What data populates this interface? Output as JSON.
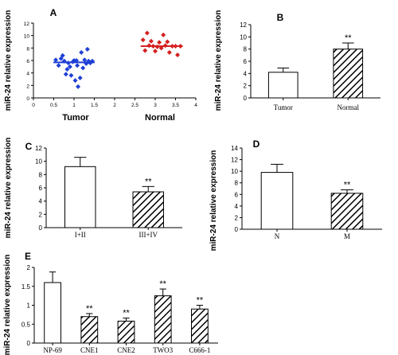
{
  "chart_data": [
    {
      "panel": "A",
      "type": "scatter",
      "ylabel": "miR-24 relative expression",
      "xlim": [
        0,
        4
      ],
      "ylim": [
        0,
        12
      ],
      "x_ticks": [
        "0",
        "0.5",
        "1",
        "1.5",
        "2",
        "2.5",
        "3",
        "3.5",
        "4"
      ],
      "y_ticks": [
        "0",
        "2",
        "4",
        "6",
        "8",
        "10",
        "12"
      ],
      "group_labels": [
        "Tumor",
        "Normal"
      ],
      "series": [
        {
          "color": "#1f3fd6",
          "mean": 5.7,
          "points": [
            [
              0.55,
              6.1
            ],
            [
              0.62,
              5.2
            ],
            [
              0.68,
              6.3
            ],
            [
              0.72,
              6.8
            ],
            [
              0.76,
              5.9
            ],
            [
              0.8,
              3.8
            ],
            [
              0.83,
              4.6
            ],
            [
              0.86,
              5.6
            ],
            [
              0.9,
              5.0
            ],
            [
              0.93,
              3.6
            ],
            [
              0.97,
              5.8
            ],
            [
              1.0,
              6.0
            ],
            [
              1.03,
              2.8
            ],
            [
              1.06,
              6.0
            ],
            [
              1.08,
              5.2
            ],
            [
              1.1,
              1.8
            ],
            [
              1.15,
              3.2
            ],
            [
              1.18,
              7.3
            ],
            [
              1.22,
              4.8
            ],
            [
              1.26,
              6.1
            ],
            [
              1.3,
              5.5
            ],
            [
              1.33,
              7.8
            ],
            [
              1.36,
              5.9
            ],
            [
              1.4,
              5.6
            ],
            [
              1.45,
              5.9
            ]
          ]
        },
        {
          "color": "#d42020",
          "mean": 8.3,
          "points": [
            [
              2.7,
              9.3
            ],
            [
              2.75,
              7.6
            ],
            [
              2.8,
              10.4
            ],
            [
              2.85,
              8.4
            ],
            [
              2.9,
              9.1
            ],
            [
              2.95,
              8.3
            ],
            [
              3.0,
              7.5
            ],
            [
              3.05,
              8.2
            ],
            [
              3.1,
              8.9
            ],
            [
              3.15,
              8.0
            ],
            [
              3.2,
              10.1
            ],
            [
              3.25,
              8.4
            ],
            [
              3.3,
              9.0
            ],
            [
              3.35,
              7.3
            ],
            [
              3.42,
              8.3
            ],
            [
              3.5,
              8.3
            ],
            [
              3.55,
              6.9
            ],
            [
              3.62,
              8.3
            ]
          ]
        }
      ]
    },
    {
      "panel": "B",
      "type": "bar",
      "ylabel": "miR-24 relative expression",
      "ylim": [
        0,
        12
      ],
      "y_ticks": [
        "0",
        "2",
        "4",
        "6",
        "8",
        "10",
        "12"
      ],
      "categories": [
        "Tumor",
        "Normal"
      ],
      "values": [
        4.2,
        8.0
      ],
      "errors": [
        0.7,
        1.0
      ],
      "hatched": [
        false,
        true
      ],
      "annotations": [
        "",
        "**"
      ]
    },
    {
      "panel": "C",
      "type": "bar",
      "ylabel": "miR-24 relative expression",
      "ylim": [
        0,
        12
      ],
      "y_ticks": [
        "0",
        "2",
        "4",
        "6",
        "8",
        "10",
        "12"
      ],
      "categories": [
        "I+II",
        "III+IV"
      ],
      "values": [
        9.2,
        5.4
      ],
      "errors": [
        1.4,
        0.8
      ],
      "hatched": [
        false,
        true
      ],
      "annotations": [
        "",
        "**"
      ]
    },
    {
      "panel": "D",
      "type": "bar",
      "ylabel": "miR-24 relative expression",
      "ylim": [
        0,
        14
      ],
      "y_ticks": [
        "0",
        "2",
        "4",
        "6",
        "8",
        "10",
        "12",
        "14"
      ],
      "categories": [
        "N",
        "M"
      ],
      "values": [
        9.8,
        6.2
      ],
      "errors": [
        1.4,
        0.6
      ],
      "hatched": [
        false,
        true
      ],
      "annotations": [
        "",
        "**"
      ]
    },
    {
      "panel": "E",
      "type": "bar",
      "ylabel": "miR-24 relative expression",
      "ylim": [
        0,
        2.0
      ],
      "y_ticks": [
        "0",
        "0.5",
        "1",
        "1.5",
        "2"
      ],
      "categories": [
        "NP-69",
        "CNE1",
        "CNE2",
        "TWO3",
        "C666-1"
      ],
      "values": [
        1.6,
        0.7,
        0.58,
        1.25,
        0.9
      ],
      "errors": [
        0.28,
        0.08,
        0.08,
        0.18,
        0.1
      ],
      "hatched": [
        false,
        true,
        true,
        true,
        true
      ],
      "annotations": [
        "",
        "**",
        "**",
        "**",
        "**"
      ]
    }
  ]
}
